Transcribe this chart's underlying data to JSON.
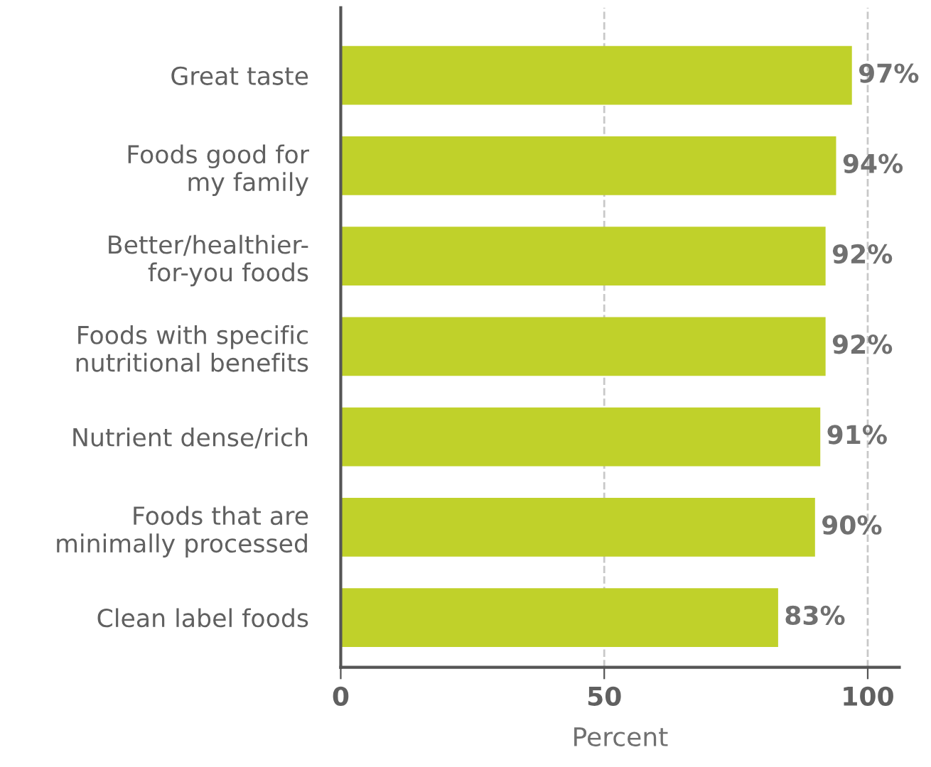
{
  "chart_data": {
    "type": "bar",
    "orientation": "horizontal",
    "xlabel": "Percent",
    "categories": [
      "Great taste",
      "Foods good for\nmy family",
      "Better/healthier-\nfor-you foods",
      "Foods with specific\nnutritional benefits",
      "Nutrient dense/rich",
      "Foods that are\nminimally processed",
      "Clean label foods"
    ],
    "values": [
      97,
      94,
      92,
      92,
      91,
      90,
      83
    ],
    "value_labels": [
      "97%",
      "94%",
      "92%",
      "92%",
      "91%",
      "90%",
      "83%"
    ],
    "color": "#c0d12a",
    "xlim": [
      0,
      106
    ],
    "xticks": [
      0,
      50,
      100
    ],
    "grid": "x",
    "legend": false
  }
}
